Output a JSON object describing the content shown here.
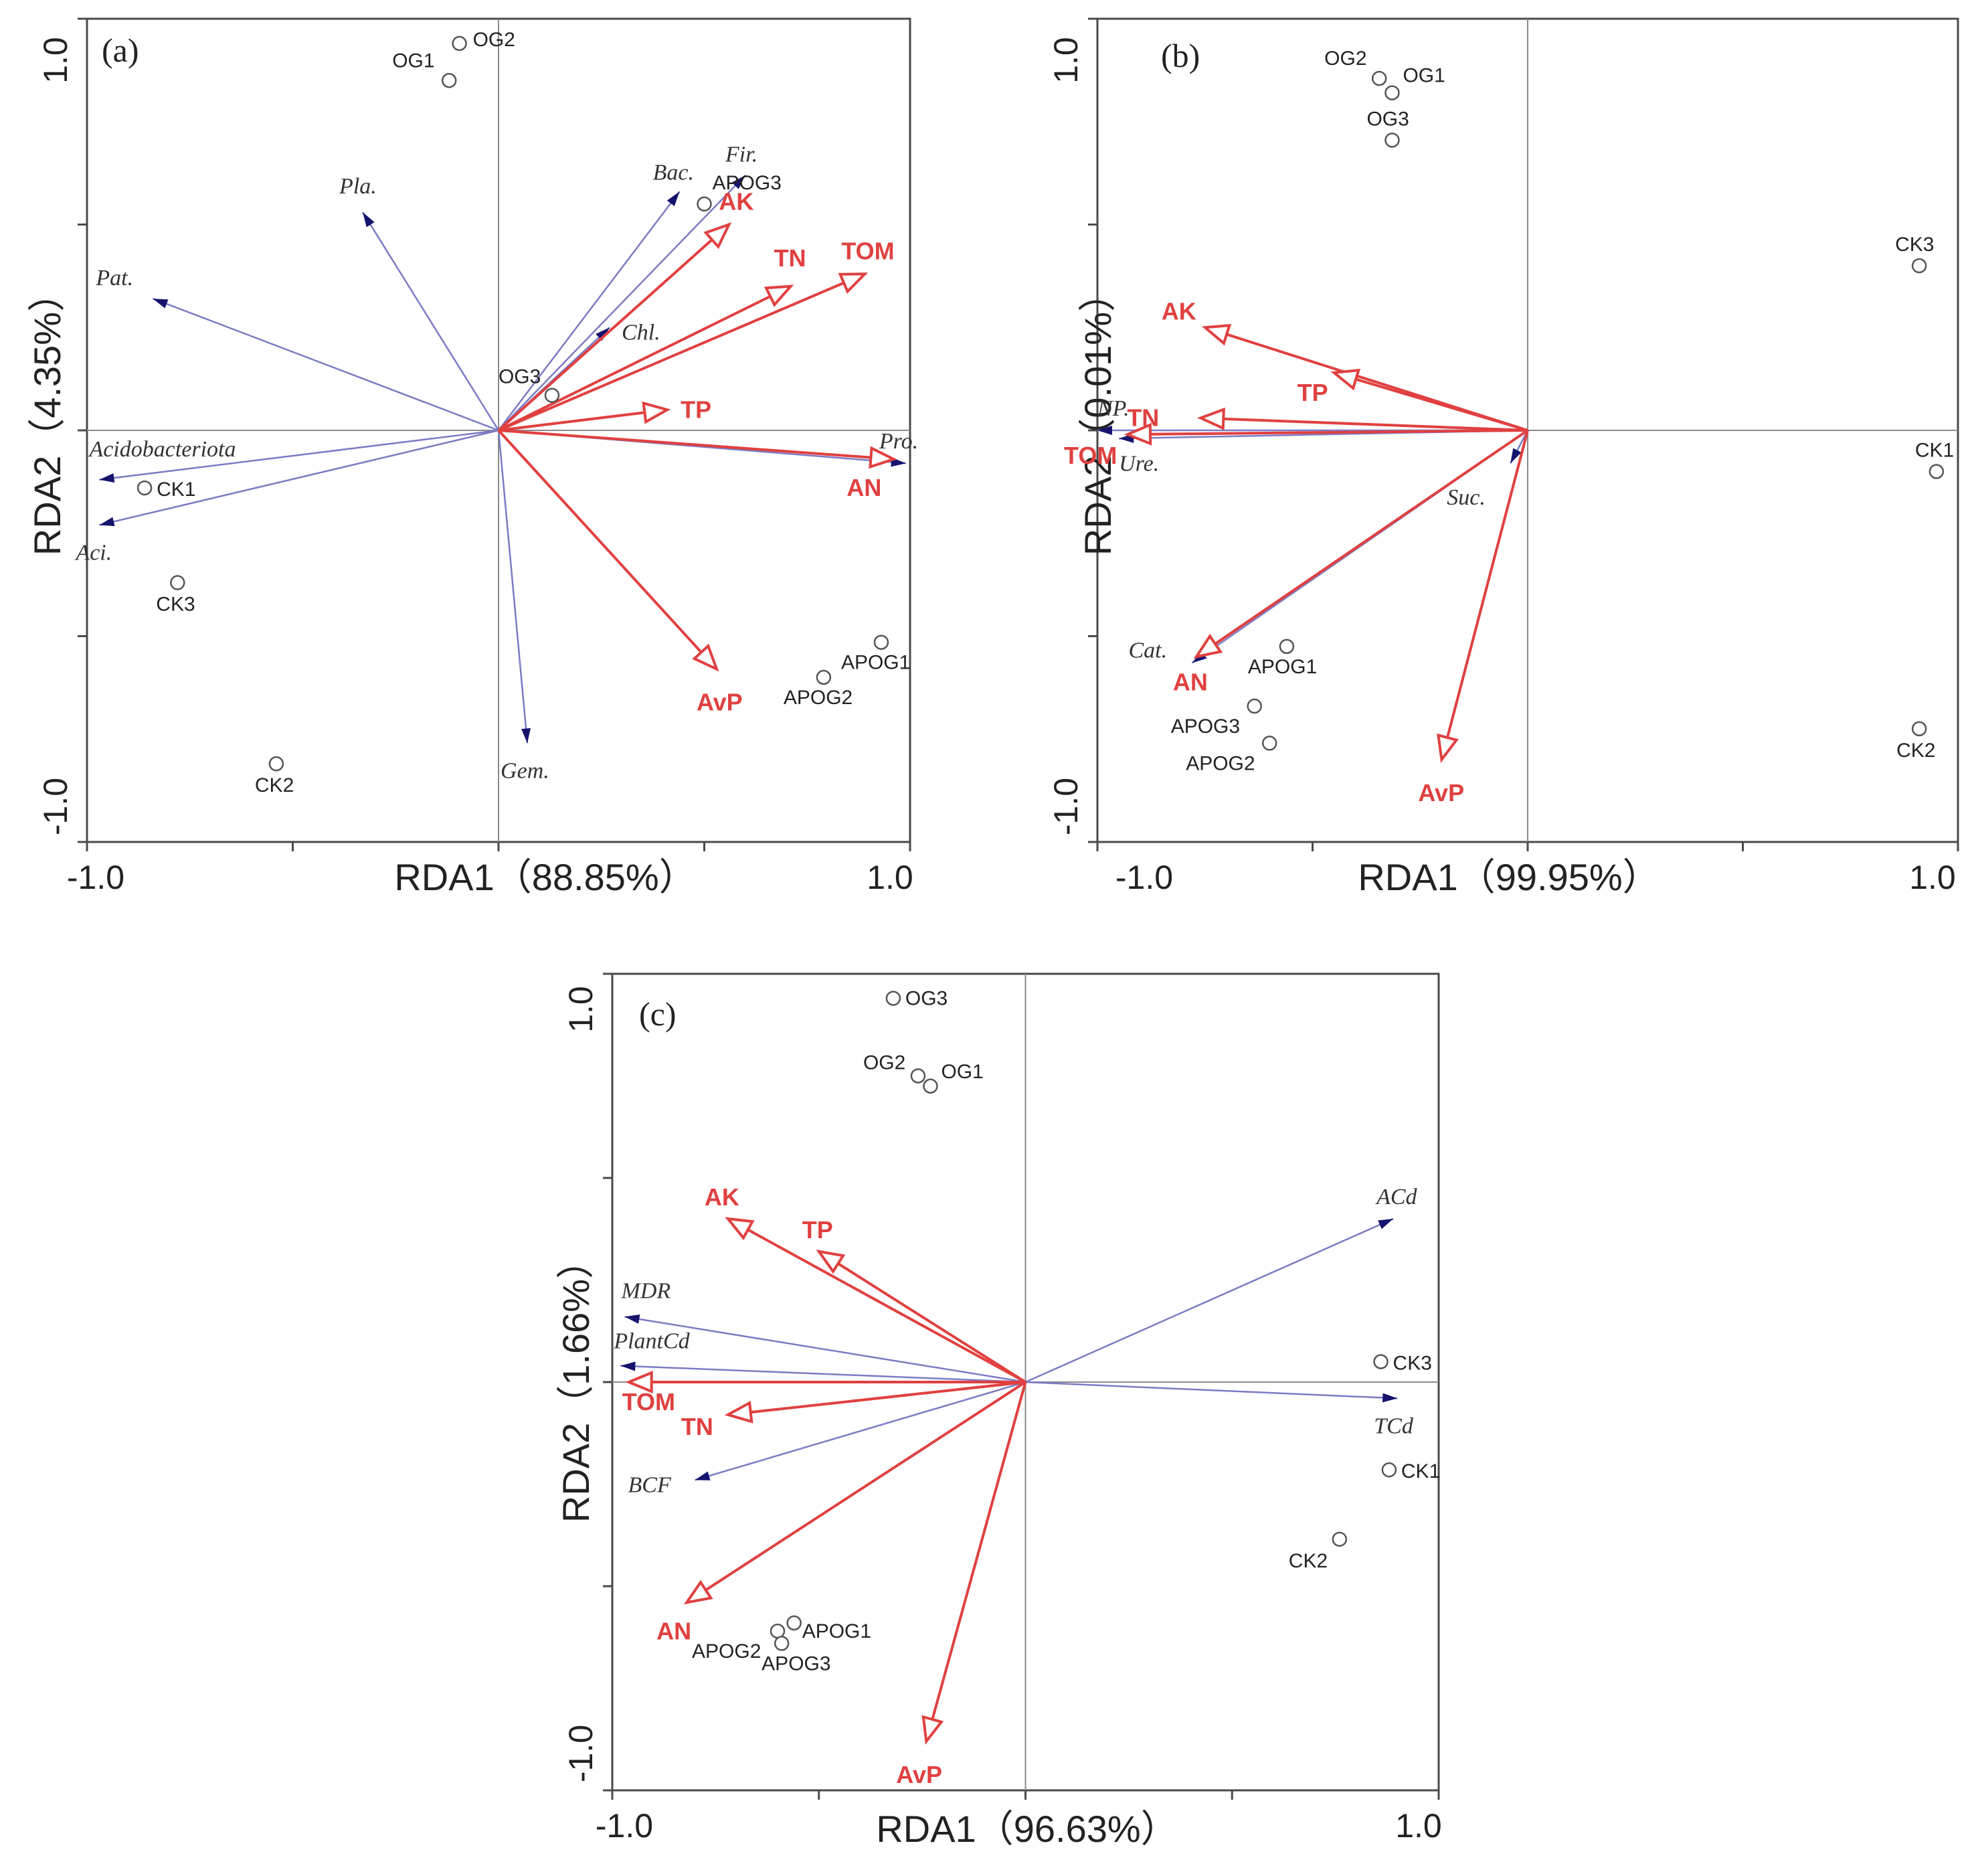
{
  "colors": {
    "env": "#e04040",
    "species": "#7b7bc4",
    "species_head": "#14146e"
  },
  "chart_data": [
    {
      "type": "scatter",
      "panel": "(a)",
      "xlabel": "RDA1（88.85%）",
      "ylabel": "RDA2（4.35%）",
      "xlim": [
        -1.0,
        1.0
      ],
      "ylim": [
        -1.0,
        1.0
      ],
      "x_tick_labels": [
        "-1.0",
        "1.0"
      ],
      "y_tick_labels": [
        "1.0",
        "-1.0"
      ],
      "sites": [
        {
          "label": "OG1",
          "x": -0.12,
          "y": 0.85
        },
        {
          "label": "OG2",
          "x": -0.095,
          "y": 0.94
        },
        {
          "label": "OG3",
          "x": 0.13,
          "y": 0.085
        },
        {
          "label": "CK1",
          "x": -0.86,
          "y": -0.14
        },
        {
          "label": "CK3",
          "x": -0.78,
          "y": -0.37
        },
        {
          "label": "CK2",
          "x": -0.54,
          "y": -0.81
        },
        {
          "label": "APOG1",
          "x": 0.93,
          "y": -0.515
        },
        {
          "label": "APOG2",
          "x": 0.79,
          "y": -0.6
        },
        {
          "label": "APOG3",
          "x": 0.5,
          "y": 0.55
        }
      ],
      "env_vectors": [
        {
          "label": "AK",
          "x": 0.56,
          "y": 0.5
        },
        {
          "label": "TN",
          "x": 0.71,
          "y": 0.35
        },
        {
          "label": "TOM",
          "x": 0.89,
          "y": 0.38
        },
        {
          "label": "TP",
          "x": 0.41,
          "y": 0.05
        },
        {
          "label": "AN",
          "x": 0.96,
          "y": -0.07
        },
        {
          "label": "AvP",
          "x": 0.53,
          "y": -0.58
        }
      ],
      "species_vectors": [
        {
          "label": "Fir.",
          "x": 0.6,
          "y": 0.62
        },
        {
          "label": "Bac.",
          "x": 0.44,
          "y": 0.58
        },
        {
          "label": "Pla.",
          "x": -0.33,
          "y": 0.53
        },
        {
          "label": "Pat.",
          "x": -0.84,
          "y": 0.32
        },
        {
          "label": "Chl.",
          "x": 0.27,
          "y": 0.25
        },
        {
          "label": "Pro.",
          "x": 0.99,
          "y": -0.08
        },
        {
          "label": "Acidobacteriota",
          "x": -0.97,
          "y": -0.12
        },
        {
          "label": "Aci.",
          "x": -0.97,
          "y": -0.23
        },
        {
          "label": "Gem.",
          "x": 0.07,
          "y": -0.76
        }
      ]
    },
    {
      "type": "scatter",
      "panel": "(b)",
      "xlabel": "RDA1（99.95%）",
      "ylabel": "RDA2（0.01%）",
      "xlim": [
        -1.0,
        1.0
      ],
      "ylim": [
        -1.0,
        1.0
      ],
      "x_tick_labels": [
        "-1.0",
        "1.0"
      ],
      "y_tick_labels": [
        "1.0",
        "-1.0"
      ],
      "sites": [
        {
          "label": "OG2",
          "x": -0.345,
          "y": 0.855
        },
        {
          "label": "OG1",
          "x": -0.315,
          "y": 0.82
        },
        {
          "label": "OG3",
          "x": -0.315,
          "y": 0.705
        },
        {
          "label": "CK3",
          "x": 0.91,
          "y": 0.4
        },
        {
          "label": "CK1",
          "x": 0.95,
          "y": -0.1
        },
        {
          "label": "CK2",
          "x": 0.91,
          "y": -0.725
        },
        {
          "label": "APOG1",
          "x": -0.56,
          "y": -0.525
        },
        {
          "label": "APOG3",
          "x": -0.635,
          "y": -0.67
        },
        {
          "label": "APOG2",
          "x": -0.6,
          "y": -0.76
        }
      ],
      "env_vectors": [
        {
          "label": "AK",
          "x": -0.75,
          "y": 0.25
        },
        {
          "label": "TP",
          "x": -0.45,
          "y": 0.14
        },
        {
          "label": "TN",
          "x": -0.76,
          "y": 0.03
        },
        {
          "label": "TOM",
          "x": -0.93,
          "y": -0.01
        },
        {
          "label": "AN",
          "x": -0.77,
          "y": -0.55
        },
        {
          "label": "AvP",
          "x": -0.2,
          "y": -0.8
        }
      ],
      "species_vectors": [
        {
          "label": "NP.",
          "x": -1.0,
          "y": 0.0
        },
        {
          "label": "Ure.",
          "x": -0.95,
          "y": -0.02
        },
        {
          "label": "Cat.",
          "x": -0.78,
          "y": -0.565
        },
        {
          "label": "Suc.",
          "x": -0.04,
          "y": -0.08
        }
      ]
    },
    {
      "type": "scatter",
      "panel": "(c)",
      "xlabel": "RDA1（96.63%）",
      "ylabel": "RDA2（1.66%）",
      "xlim": [
        -1.0,
        1.0
      ],
      "ylim": [
        -1.0,
        1.0
      ],
      "x_tick_labels": [
        "-1.0",
        "1.0"
      ],
      "y_tick_labels": [
        "1.0",
        "-1.0"
      ],
      "sites": [
        {
          "label": "OG3",
          "x": -0.32,
          "y": 0.94
        },
        {
          "label": "OG2",
          "x": -0.26,
          "y": 0.75
        },
        {
          "label": "OG1",
          "x": -0.23,
          "y": 0.725
        },
        {
          "label": "CK3",
          "x": 0.86,
          "y": 0.05
        },
        {
          "label": "CK1",
          "x": 0.88,
          "y": -0.215
        },
        {
          "label": "CK2",
          "x": 0.76,
          "y": -0.385
        },
        {
          "label": "APOG2",
          "x": -0.6,
          "y": -0.61
        },
        {
          "label": "APOG1",
          "x": -0.56,
          "y": -0.59
        },
        {
          "label": "APOG3",
          "x": -0.59,
          "y": -0.64
        }
      ],
      "env_vectors": [
        {
          "label": "AK",
          "x": -0.72,
          "y": 0.4
        },
        {
          "label": "TP",
          "x": -0.5,
          "y": 0.32
        },
        {
          "label": "TOM",
          "x": -0.96,
          "y": 0.0
        },
        {
          "label": "TN",
          "x": -0.72,
          "y": -0.08
        },
        {
          "label": "AN",
          "x": -0.82,
          "y": -0.54
        },
        {
          "label": "AvP",
          "x": -0.24,
          "y": -0.88
        }
      ],
      "species_vectors": [
        {
          "label": "ACd",
          "x": 0.89,
          "y": 0.4
        },
        {
          "label": "TCd",
          "x": 0.9,
          "y": -0.04
        },
        {
          "label": "MDR",
          "x": -0.97,
          "y": 0.16
        },
        {
          "label": "PlantCd",
          "x": -0.98,
          "y": 0.04
        },
        {
          "label": "BCF",
          "x": -0.8,
          "y": -0.24
        }
      ]
    }
  ]
}
